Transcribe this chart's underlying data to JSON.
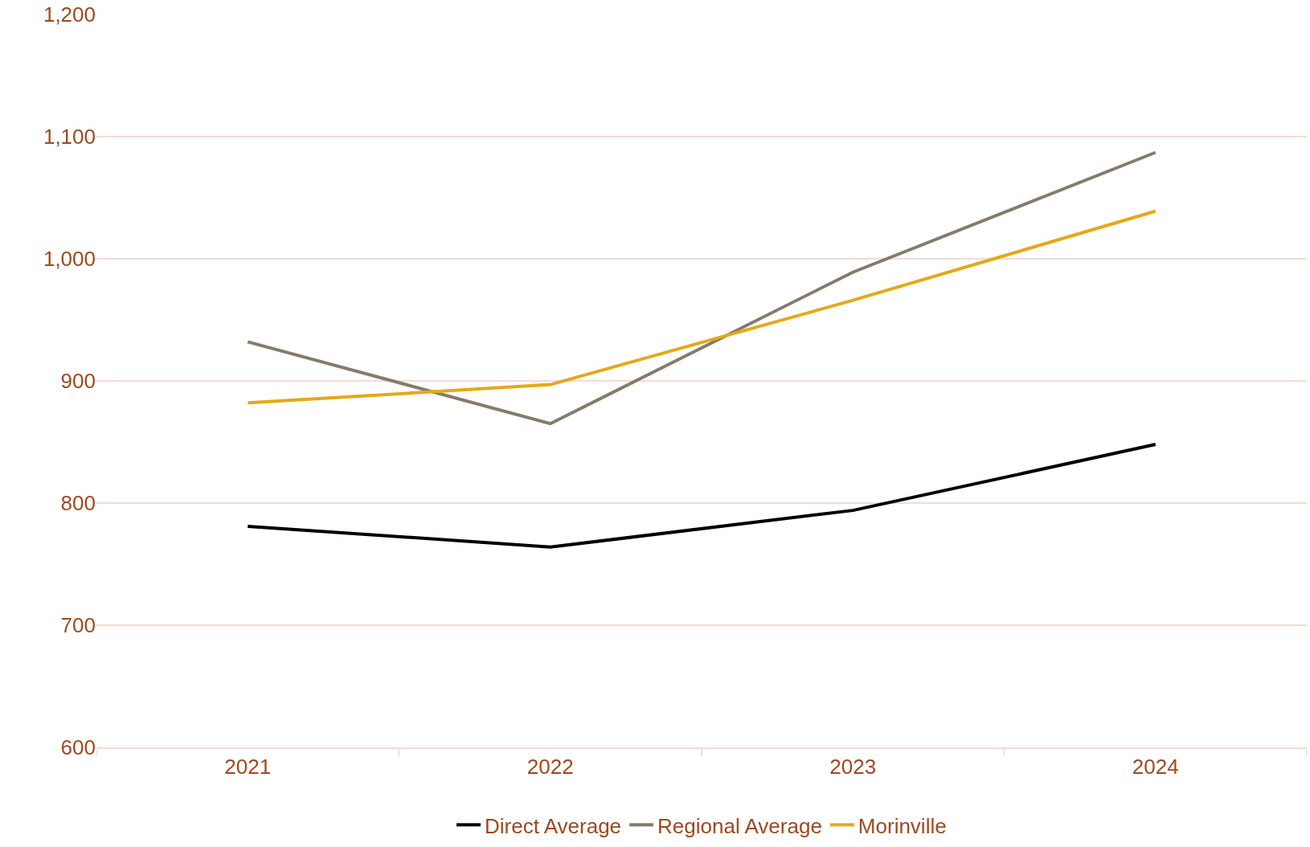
{
  "chart_data": {
    "type": "line",
    "categories": [
      "2021",
      "2022",
      "2023",
      "2024"
    ],
    "series": [
      {
        "name": "Direct Average",
        "color": "#000000",
        "values": [
          781,
          764,
          794,
          848
        ]
      },
      {
        "name": "Regional Average",
        "color": "#857b6c",
        "values": [
          932,
          865,
          989,
          1087
        ]
      },
      {
        "name": "Morinville",
        "color": "#e6a817",
        "values": [
          882,
          897,
          966,
          1039
        ]
      }
    ],
    "ylim": [
      600,
      1200
    ],
    "yticks": [
      {
        "value": 600,
        "label": "600"
      },
      {
        "value": 700,
        "label": "700"
      },
      {
        "value": 800,
        "label": "800"
      },
      {
        "value": 900,
        "label": "900"
      },
      {
        "value": 1000,
        "label": "1,000"
      },
      {
        "value": 1100,
        "label": "1,100"
      },
      {
        "value": 1200,
        "label": "1,200"
      }
    ],
    "grid": "y",
    "legend": "bottom",
    "marker": "none",
    "line_style": "solid"
  }
}
